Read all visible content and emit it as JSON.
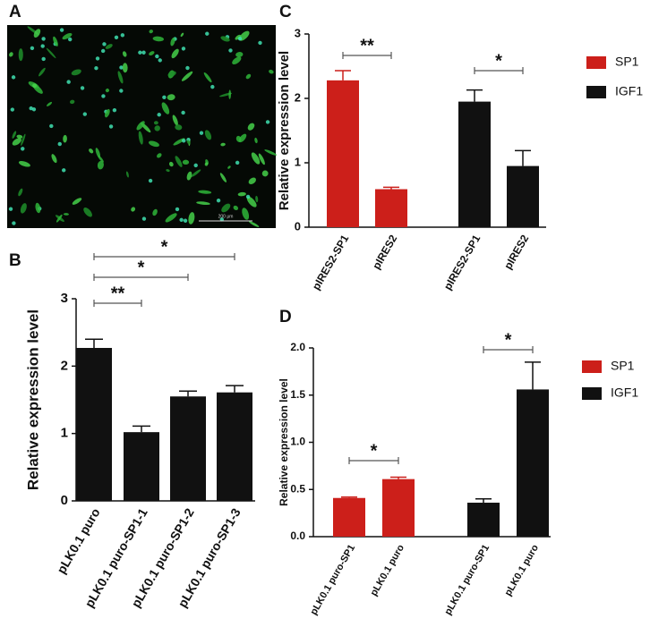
{
  "panel_a": {
    "panel": "A",
    "scale_bar": "200 μm"
  },
  "chart_data": [
    {
      "type": "bar",
      "panel": "B",
      "ylabel": "Relative expression level",
      "categories": [
        "pLK0.1 puro",
        "pLK0.1 puro-SP1-1",
        "pLK0.1 puro-SP1-2",
        "pLK0.1 puro-SP1-3"
      ],
      "values": [
        2.27,
        1.02,
        1.55,
        1.61
      ],
      "errors": [
        0.13,
        0.09,
        0.08,
        0.1
      ],
      "color": "#111111",
      "ylim": [
        0,
        3
      ],
      "yticks": [
        0,
        1,
        2,
        3
      ],
      "annotations": [
        "**",
        "*",
        "*"
      ]
    },
    {
      "type": "bar",
      "panel": "C",
      "ylabel": "Relative expression level",
      "categories": [
        "pIRES2-SP1",
        "pIRES2",
        "pIRES2-SP1",
        "pIRES2"
      ],
      "series": [
        {
          "name": "SP1",
          "color": "#cc1f1a",
          "values": [
            2.28,
            0.59,
            null,
            null
          ],
          "errors": [
            0.15,
            0.03,
            null,
            null
          ]
        },
        {
          "name": "IGF1",
          "color": "#111111",
          "values": [
            null,
            null,
            1.95,
            0.95
          ],
          "errors": [
            null,
            null,
            0.18,
            0.24
          ]
        }
      ],
      "ylim": [
        0,
        3
      ],
      "yticks": [
        0,
        1,
        2,
        3
      ],
      "annotations": [
        "**",
        "*"
      ]
    },
    {
      "type": "bar",
      "panel": "D",
      "ylabel": "Relative expression level",
      "categories": [
        "pLK0.1 puro-SP1",
        "pLK0.1 puro",
        "pLK0.1 puro-SP1",
        "pLK0.1 puro"
      ],
      "series": [
        {
          "name": "SP1",
          "color": "#cc1f1a",
          "values": [
            0.41,
            0.61,
            null,
            null
          ],
          "errors": [
            0.01,
            0.02,
            null,
            null
          ]
        },
        {
          "name": "IGF1",
          "color": "#111111",
          "values": [
            null,
            null,
            0.36,
            1.56
          ],
          "errors": [
            null,
            null,
            0.04,
            0.29
          ]
        }
      ],
      "ylim": [
        0,
        2
      ],
      "yticks": [
        {
          "value": 0,
          "label": "0.0"
        },
        {
          "value": 0.5,
          "label": "0.5"
        },
        {
          "value": 1,
          "label": "1.0"
        },
        {
          "value": 1.5,
          "label": "1.5"
        },
        {
          "value": 2,
          "label": "2.0"
        }
      ],
      "annotations": [
        "*",
        "*"
      ]
    }
  ]
}
